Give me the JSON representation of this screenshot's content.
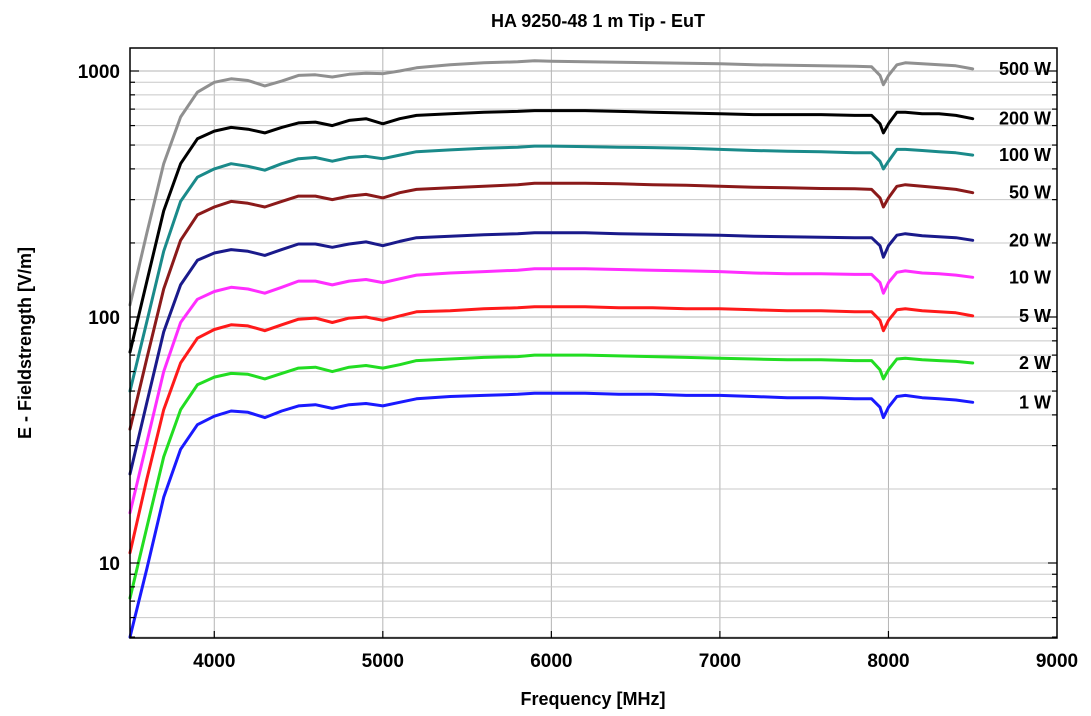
{
  "chart_data": {
    "type": "line",
    "title": "HA 9250-48   1 m Tip - EuT",
    "xlabel": "Frequency [MHz]",
    "ylabel": "E - Fieldstrength [V/m]",
    "xlim": [
      3500,
      9000
    ],
    "ylim": [
      5,
      1300
    ],
    "yscale": "log",
    "grid": true,
    "x_ticks": [
      4000,
      5000,
      6000,
      7000,
      8000,
      9000
    ],
    "x_tick_labels": [
      "4000",
      "5000",
      "6000",
      "7000",
      "8000",
      "9000"
    ],
    "y_ticks": [
      10,
      100,
      1000
    ],
    "y_tick_labels": [
      "10",
      "100",
      "1000"
    ],
    "x": [
      3500,
      3600,
      3700,
      3800,
      3900,
      4000,
      4100,
      4200,
      4300,
      4400,
      4500,
      4600,
      4700,
      4800,
      4900,
      5000,
      5100,
      5200,
      5400,
      5600,
      5800,
      5900,
      6000,
      6200,
      6400,
      6600,
      6800,
      7000,
      7200,
      7400,
      7600,
      7800,
      7900,
      7950,
      7970,
      8000,
      8050,
      8100,
      8200,
      8300,
      8400,
      8500
    ],
    "series": [
      {
        "name": "500 W",
        "color": "#909090",
        "values": [
          112,
          220,
          420,
          650,
          820,
          900,
          930,
          915,
          870,
          910,
          960,
          965,
          945,
          970,
          980,
          975,
          1000,
          1030,
          1060,
          1080,
          1090,
          1100,
          1095,
          1090,
          1085,
          1080,
          1075,
          1070,
          1060,
          1055,
          1050,
          1045,
          1040,
          960,
          880,
          960,
          1060,
          1080,
          1070,
          1060,
          1050,
          1020
        ]
      },
      {
        "name": "200 W",
        "color": "#000000",
        "values": [
          72,
          140,
          270,
          420,
          530,
          570,
          590,
          580,
          560,
          590,
          615,
          620,
          600,
          630,
          640,
          610,
          640,
          660,
          670,
          680,
          685,
          690,
          690,
          690,
          685,
          680,
          675,
          670,
          665,
          665,
          665,
          660,
          660,
          610,
          560,
          610,
          680,
          680,
          670,
          670,
          660,
          640
        ]
      },
      {
        "name": "100 W",
        "color": "#1a8a8a",
        "values": [
          50,
          96,
          185,
          295,
          370,
          400,
          420,
          410,
          395,
          420,
          440,
          445,
          430,
          445,
          450,
          440,
          455,
          470,
          478,
          485,
          490,
          495,
          495,
          493,
          490,
          488,
          485,
          480,
          475,
          472,
          470,
          465,
          465,
          430,
          400,
          430,
          480,
          480,
          475,
          470,
          465,
          455
        ]
      },
      {
        "name": "50 W",
        "color": "#8b1a1a",
        "values": [
          35,
          68,
          130,
          205,
          260,
          280,
          295,
          290,
          280,
          295,
          310,
          310,
          300,
          310,
          315,
          305,
          320,
          330,
          335,
          340,
          345,
          350,
          350,
          350,
          348,
          345,
          343,
          340,
          337,
          335,
          333,
          332,
          330,
          305,
          280,
          305,
          340,
          345,
          340,
          335,
          330,
          320
        ]
      },
      {
        "name": "20 W",
        "color": "#1a1a8b",
        "values": [
          23,
          45,
          87,
          135,
          170,
          182,
          188,
          185,
          178,
          188,
          198,
          198,
          192,
          198,
          202,
          195,
          203,
          210,
          213,
          216,
          218,
          220,
          220,
          220,
          218,
          217,
          216,
          215,
          213,
          212,
          211,
          210,
          210,
          195,
          175,
          195,
          215,
          218,
          214,
          212,
          210,
          205
        ]
      },
      {
        "name": "10 W",
        "color": "#ff2eff",
        "values": [
          16,
          31,
          60,
          95,
          118,
          127,
          132,
          130,
          125,
          132,
          140,
          140,
          135,
          140,
          142,
          138,
          143,
          148,
          151,
          153,
          155,
          157,
          157,
          157,
          156,
          155,
          154,
          153,
          151,
          150,
          150,
          149,
          149,
          138,
          125,
          138,
          152,
          154,
          151,
          150,
          148,
          145
        ]
      },
      {
        "name": "5 W",
        "color": "#ff1a1a",
        "values": [
          11,
          22,
          42,
          65,
          82,
          89,
          93,
          92,
          88,
          93,
          98,
          99,
          95,
          99,
          100,
          97,
          101,
          105,
          106,
          108,
          109,
          110,
          110,
          110,
          109,
          109,
          108,
          108,
          107,
          106,
          106,
          105,
          105,
          97,
          88,
          97,
          107,
          108,
          106,
          105,
          104,
          101
        ]
      },
      {
        "name": "2 W",
        "color": "#22dd22",
        "values": [
          7.2,
          14,
          27,
          42,
          53,
          57,
          59,
          58.5,
          56,
          59,
          62,
          62.5,
          60,
          62.5,
          63.5,
          62,
          64,
          66.5,
          67.5,
          68.5,
          69,
          70,
          70,
          70,
          69.5,
          69,
          68.5,
          68,
          67.5,
          67,
          67,
          66.5,
          66.5,
          61,
          56,
          61,
          67.5,
          68,
          67,
          66.5,
          66,
          65
        ]
      },
      {
        "name": "1 W",
        "color": "#1a1aff",
        "values": [
          5.0,
          9.5,
          18.5,
          29,
          36.5,
          39.5,
          41.5,
          41,
          39,
          41.5,
          43.5,
          44,
          42.5,
          44,
          44.5,
          43.5,
          45,
          46.5,
          47.5,
          48,
          48.5,
          49,
          49,
          49,
          48.5,
          48.5,
          48,
          48,
          47.5,
          47,
          47,
          46.5,
          46.5,
          43,
          39,
          43,
          47.5,
          48,
          47,
          46.5,
          46,
          45
        ]
      }
    ]
  }
}
